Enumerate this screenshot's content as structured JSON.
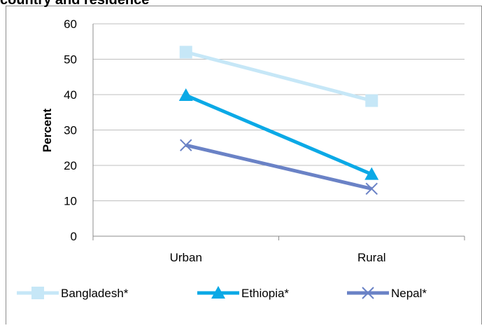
{
  "chart_data": {
    "type": "line",
    "title": "country and residence",
    "ylabel": "Percent",
    "xlabel": "",
    "categories": [
      "Urban",
      "Rural"
    ],
    "ylim": [
      0,
      60
    ],
    "yticks": [
      0,
      10,
      20,
      30,
      40,
      50,
      60
    ],
    "grid": true,
    "legend_position": "bottom",
    "series": [
      {
        "name": "Bangladesh*",
        "values": [
          52,
          38.3
        ],
        "color": "#c6e7f7",
        "marker": "square"
      },
      {
        "name": "Ethiopia*",
        "values": [
          39.8,
          17.5
        ],
        "color": "#0ba9e6",
        "marker": "triangle"
      },
      {
        "name": "Nepal*",
        "values": [
          25.7,
          13.4
        ],
        "color": "#6a82c6",
        "marker": "x"
      }
    ]
  }
}
